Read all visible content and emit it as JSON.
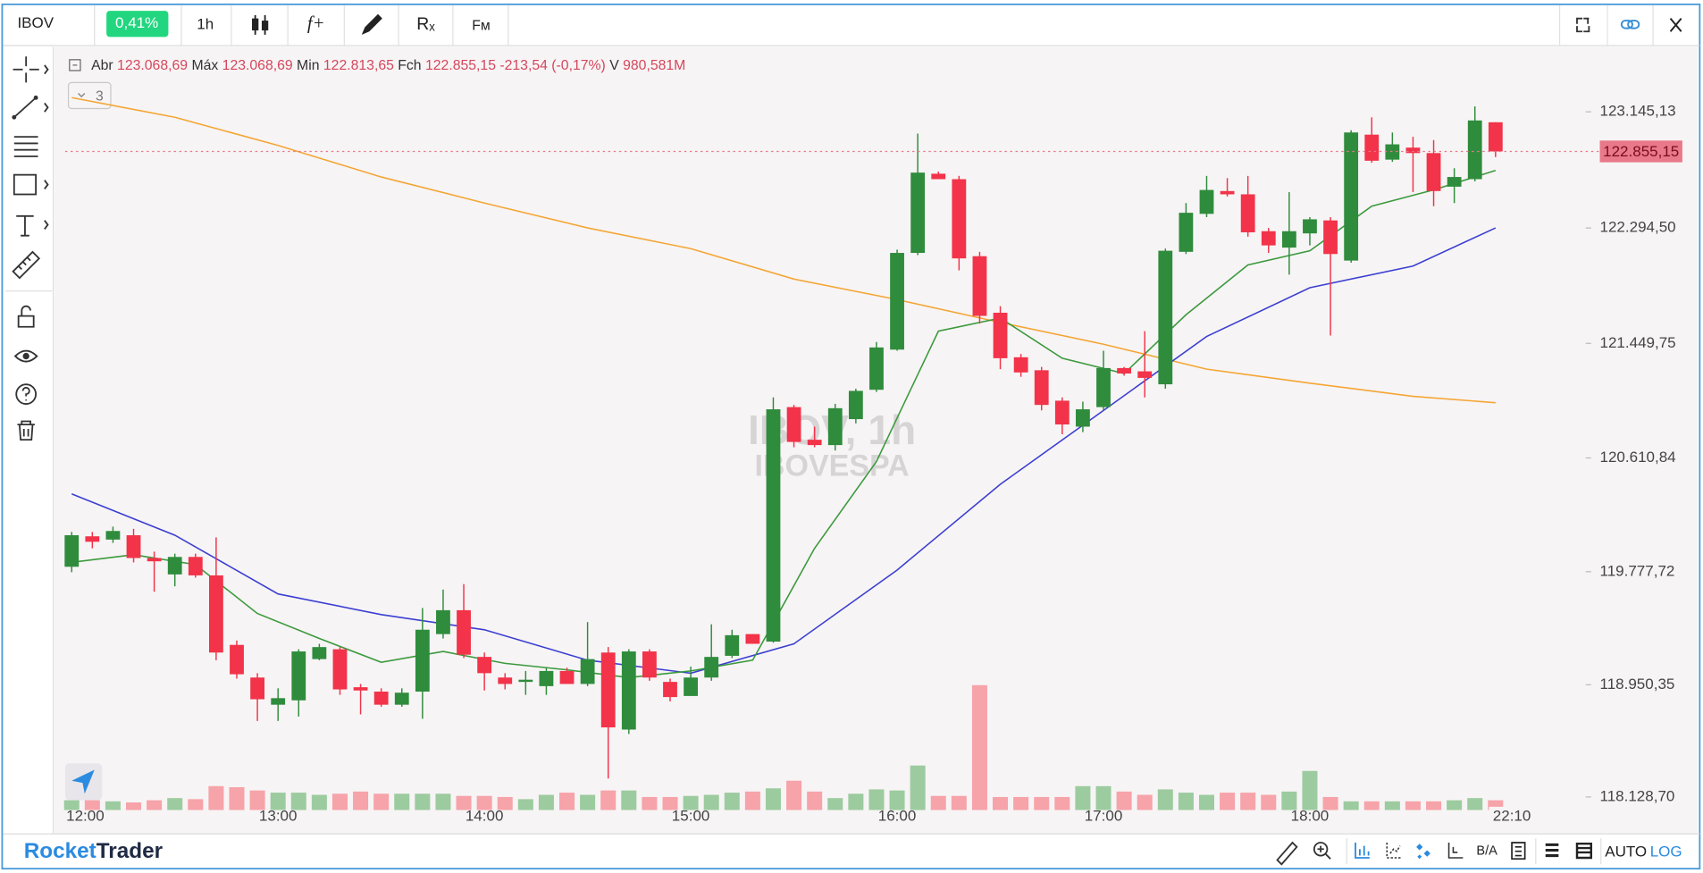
{
  "toolbar": {
    "symbol": "IBOV",
    "change": "0,41%",
    "interval": "1h",
    "indicator_button": "f+",
    "clear_button": "Rₓ",
    "fm_button": "Fᴍ"
  },
  "indicator_count": "3",
  "watermark": {
    "line1": "IBOV, 1h",
    "line2": "IBOVESPA"
  },
  "footer": {
    "brand_1": "Rocket",
    "brand_2": "Trader",
    "ba_button": "B/A",
    "auto_button": "AUTO",
    "log_button": "LOG"
  },
  "chart_data": {
    "type": "candlestick",
    "legend_bar": {
      "open_label": "Abr",
      "open": "123.068,69",
      "high_label": "Máx",
      "high": "123.068,69",
      "low_label": "Min",
      "low": "122.813,65",
      "close_label": "Fch",
      "close": "122.855,15",
      "change": "-213,54 (-0,17%)",
      "volume_label": "V",
      "volume": "980,581M"
    },
    "time_marker": "22:10",
    "categories": [
      "12:00",
      null,
      null,
      null,
      null,
      null,
      null,
      null,
      null,
      null,
      "13:00",
      null,
      null,
      null,
      null,
      null,
      null,
      null,
      null,
      null,
      "14:00",
      null,
      null,
      null,
      null,
      null,
      null,
      null,
      null,
      null,
      "15:00",
      null,
      null,
      null,
      null,
      null,
      null,
      null,
      null,
      null,
      "16:00",
      null,
      null,
      null,
      null,
      null,
      null,
      null,
      null,
      null,
      "17:00",
      null,
      null,
      null,
      null,
      null,
      null,
      null,
      null,
      null,
      "18:00",
      null,
      null,
      null,
      null,
      null,
      null,
      null,
      null,
      null
    ],
    "open": [
      119814,
      120037,
      120013,
      120045,
      119878,
      119758,
      119886,
      119751,
      119242,
      119003,
      118804,
      118836,
      119138,
      119210,
      118932,
      118900,
      118804,
      118900,
      119321,
      119496,
      119154,
      119003,
      118971,
      118940,
      119051,
      118956,
      119186,
      118622,
      119194,
      118971,
      118868,
      119003,
      119162,
      119321,
      119266,
      120983,
      120744,
      120705,
      120895,
      121110,
      121404,
      122112,
      122692,
      122652,
      122088,
      121674,
      121348,
      121253,
      121030,
      120840,
      120983,
      121269,
      121245,
      121150,
      122120,
      122398,
      122565,
      122541,
      122271,
      122151,
      122255,
      122350,
      122056,
      122978,
      122795,
      122883,
      122843,
      122597,
      122652,
      123068.69
    ],
    "high": [
      120069,
      120069,
      120108,
      120092,
      119925,
      119910,
      119910,
      120029,
      119274,
      119035,
      118924,
      119210,
      119250,
      119226,
      118956,
      118924,
      118924,
      119512,
      119647,
      119687,
      119186,
      119035,
      119051,
      119075,
      119075,
      119409,
      119226,
      119210,
      119210,
      118995,
      119083,
      119393,
      119353,
      119321,
      121054,
      120999,
      120840,
      121007,
      121118,
      121460,
      122136,
      122986,
      122708,
      122676,
      122120,
      121722,
      121372,
      121277,
      121054,
      121023,
      121396,
      121277,
      121539,
      122143,
      122477,
      122676,
      122660,
      122676,
      122295,
      122557,
      122374,
      122374,
      123010,
      123105,
      122994,
      122962,
      122938,
      122732,
      123185,
      123068.69
    ],
    "low": [
      119774,
      119949,
      119989,
      119846,
      119631,
      119671,
      119735,
      119130,
      118995,
      118685,
      118685,
      118717,
      119130,
      118876,
      118733,
      118789,
      118789,
      118701,
      119289,
      119146,
      118908,
      118916,
      118876,
      118876,
      118956,
      118940,
      118264,
      118590,
      118979,
      118828,
      118868,
      118979,
      119146,
      119250,
      119258,
      120689,
      120689,
      120665,
      120864,
      121094,
      121396,
      122096,
      122652,
      121984,
      121595,
      121261,
      121205,
      120959,
      120784,
      120800,
      120959,
      121213,
      121054,
      121118,
      122104,
      122374,
      122525,
      122231,
      122112,
      121953,
      122167,
      121507,
      122040,
      122772,
      122779,
      122557,
      122454,
      122477,
      122636,
      122813.65
    ],
    "close": [
      120045,
      119997,
      120076,
      119878,
      119854,
      119886,
      119751,
      119186,
      119027,
      118844,
      118852,
      119194,
      119226,
      118916,
      118908,
      118804,
      118892,
      119353,
      119496,
      119170,
      119035,
      118956,
      118987,
      119051,
      118956,
      119138,
      118638,
      119194,
      119003,
      118860,
      119003,
      119154,
      119313,
      119250,
      120967,
      120728,
      120705,
      120975,
      121102,
      121420,
      122112,
      122700,
      122652,
      122072,
      121651,
      121341,
      121237,
      120999,
      120856,
      120967,
      121269,
      121229,
      121197,
      122128,
      122406,
      122573,
      122541,
      122263,
      122167,
      122271,
      122358,
      122104,
      122994,
      122787,
      122907,
      122843,
      122565,
      122668,
      123082,
      122855.15
    ],
    "volume": [
      9,
      9,
      8,
      7,
      9,
      11,
      10,
      22,
      21,
      18,
      16,
      16,
      14,
      15,
      17,
      15,
      15,
      15,
      15,
      13,
      13,
      12,
      10,
      14,
      16,
      14,
      18,
      18,
      12,
      12,
      13,
      14,
      16,
      17,
      20,
      27,
      17,
      11,
      15,
      19,
      18,
      41,
      13,
      13,
      115,
      12,
      12,
      12,
      12,
      22,
      22,
      17,
      14,
      19,
      16,
      14,
      16,
      16,
      14,
      17,
      36,
      12,
      8,
      8,
      8,
      8,
      8,
      9,
      11,
      9
    ],
    "up_color": "#2f8c3c",
    "down_color": "#f23349",
    "volume_up_color": "#9ccb9f",
    "volume_down_color": "#f6a3a9",
    "last_price_color": "#e8788a",
    "series": [
      {
        "color": "#f4a634",
        "x": [
          0,
          5,
          10,
          15,
          20,
          25,
          30,
          35,
          40,
          45,
          50,
          55,
          60,
          65,
          69
        ],
        "values": [
          123249,
          123105,
          122899,
          122668,
          122477,
          122295,
          122143,
          121921,
          121770,
          121603,
          121444,
          121261,
          121158,
          121062,
          121015
        ]
      },
      {
        "color": "#3b3fd1",
        "x": [
          0,
          5,
          10,
          15,
          20,
          25,
          30,
          35,
          40,
          45,
          50,
          55,
          60,
          65,
          69
        ],
        "values": [
          120347,
          120045,
          119615,
          119464,
          119353,
          119130,
          119035,
          119250,
          119790,
          120418,
          120959,
          121500,
          121857,
          122016,
          122295
        ]
      },
      {
        "color": "#3b9a3d",
        "x": [
          0,
          3,
          6,
          9,
          12,
          15,
          18,
          21,
          24,
          27,
          30,
          33,
          36,
          39,
          42,
          45,
          48,
          51,
          54,
          57,
          60,
          63,
          66,
          69
        ],
        "values": [
          119846,
          119902,
          119830,
          119472,
          119289,
          119115,
          119194,
          119107,
          119059,
          119003,
          119051,
          119130,
          119949,
          120585,
          121539,
          121635,
          121341,
          121229,
          121659,
          122024,
          122128,
          122454,
          122573,
          122716
        ]
      }
    ],
    "ylim": [
      117858,
      123622
    ],
    "yticks": [
      {
        "value": 123145.13,
        "label": "123.145,13"
      },
      {
        "value": 122294.5,
        "label": "122.294,50"
      },
      {
        "value": 121449.75,
        "label": "121.449,75"
      },
      {
        "value": 120610.84,
        "label": "120.610,84"
      },
      {
        "value": 119777.72,
        "label": "119.777,72"
      },
      {
        "value": 118950.35,
        "label": "118.950,35"
      },
      {
        "value": 118128.7,
        "label": "118.128,70"
      }
    ],
    "grid": false
  }
}
